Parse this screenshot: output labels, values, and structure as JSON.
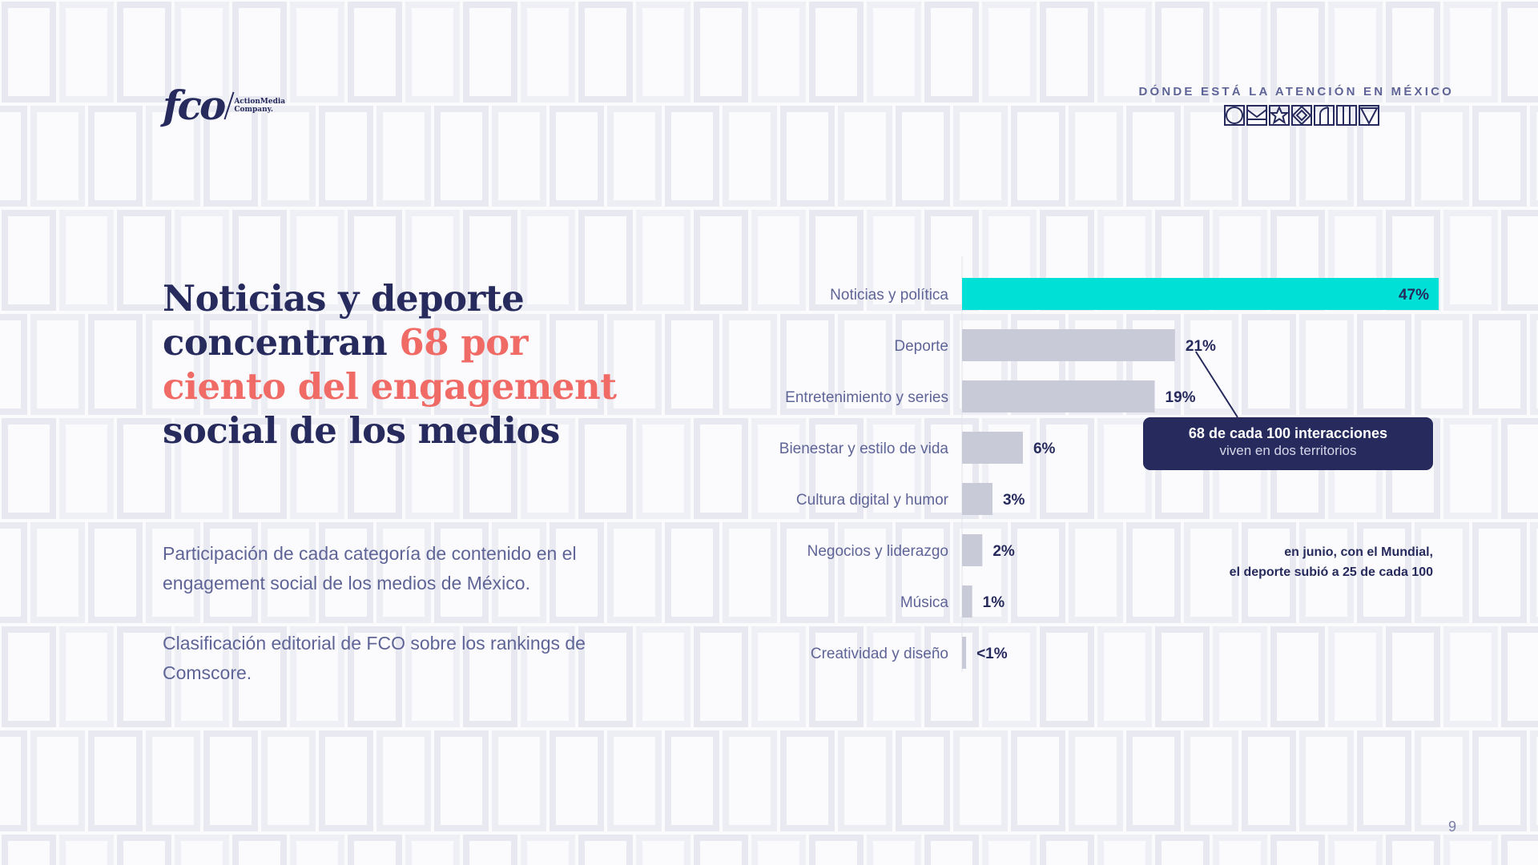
{
  "header": {
    "logo_mark": "fco",
    "logo_sub_line1": "ActionMedia",
    "logo_sub_line2": "Company.",
    "kicker": "DÓNDE ESTÁ LA ATENCIÓN EN MÉXICO",
    "icons": [
      "circle-icon",
      "envelope-icon",
      "star-icon",
      "diamond-icon",
      "arch-icon",
      "columns-icon",
      "triangle-icon"
    ]
  },
  "title": {
    "part1": "Noticias y deporte concentran ",
    "highlight": "68 por ciento del engagement",
    "part2": " social de los medios"
  },
  "description": {
    "line1": "Participación de cada categoría de contenido en el engagement social de los medios de México.",
    "line2": "Clasificación editorial de FCO sobre los rankings de Comscore."
  },
  "colors": {
    "navy": "#262a5c",
    "accent": "#f06a66",
    "highlight_bar": "#00e0d6",
    "muted_bar": "#c9cad8"
  },
  "chart_data": {
    "type": "bar",
    "orientation": "horizontal",
    "categories": [
      "Noticias y política",
      "Deporte",
      "Entretenimiento y series",
      "Bienestar y estilo de vida",
      "Cultura digital y humor",
      "Negocios y liderazgo",
      "Música",
      "Creatividad y diseño"
    ],
    "values": [
      47,
      21,
      19,
      6,
      3,
      2,
      1,
      0.4
    ],
    "value_labels": [
      "47%",
      "21%",
      "19%",
      "6%",
      "3%",
      "2%",
      "1%",
      "<1%"
    ],
    "xlim": [
      0,
      47
    ],
    "grid": false,
    "highlight_index": 0
  },
  "callout": {
    "main": "68 de cada 100 interacciones",
    "sub": "viven en dos territorios"
  },
  "note": {
    "line1": "en junio, con el Mundial,",
    "line2": "el deporte subió a 25 de cada 100"
  },
  "page_number": "9"
}
